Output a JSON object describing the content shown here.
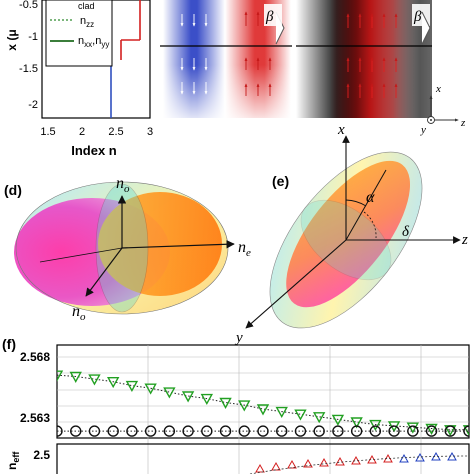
{
  "panel_a": {
    "y_axis_label": "x (μ",
    "x_axis_label": "Index n",
    "y_ticks": [
      "-0.5",
      "-1",
      "-1.5",
      "-2"
    ],
    "x_ticks": [
      "1.5",
      "2",
      "2.5",
      "3"
    ],
    "legend": {
      "clad": "clad",
      "nzz": "n",
      "nzz_sub": "zz",
      "nxx": "n",
      "nxx_sub": "xx",
      "sep": ",",
      "nyy": "n",
      "nyy_sub": "yy"
    },
    "colors": {
      "nzz": "#2e8b2e",
      "nxx_nyy": "#1f6b1f",
      "red": "#d42020",
      "blue": "#3050c0"
    }
  },
  "field_panels": {
    "beta_left": "β",
    "beta_right": "β",
    "axis_x": "x",
    "axis_y": "y",
    "axis_z": "z"
  },
  "panel_d": {
    "label": "(d)",
    "n_o_top": "n",
    "n_o_top_sub": "o",
    "n_e": "n",
    "n_e_sub": "e",
    "n_o_bottom": "n",
    "n_o_bottom_sub": "o"
  },
  "panel_e": {
    "label": "(e)",
    "axis_x": "x",
    "axis_z": "z",
    "axis_y": "y",
    "alpha": "α",
    "delta": "δ"
  },
  "panel_f": {
    "label": "(f)",
    "y_ticks_top": [
      "2.568",
      "2.563"
    ],
    "y_tick_bottom": "2.5",
    "y_axis_label": "n",
    "y_axis_label_sub": "eff",
    "colors": {
      "green": "#22a022",
      "black": "#111111",
      "red": "#d42020",
      "blue": "#2040c0"
    }
  },
  "chart_data": {
    "type": "scatter",
    "series": [
      {
        "marker": "triangle-down",
        "color": "#22a022",
        "x": [
          0,
          1,
          2,
          3,
          4,
          5,
          6,
          7,
          8,
          9,
          10,
          11,
          12,
          13,
          14,
          15,
          16,
          17,
          18,
          19,
          20,
          21,
          22
        ],
        "y": [
          2.5666,
          2.5665,
          2.5663,
          2.5661,
          2.5658,
          2.5656,
          2.5653,
          2.565,
          2.5648,
          2.5645,
          2.5643,
          2.564,
          2.5638,
          2.5636,
          2.5634,
          2.5632,
          2.563,
          2.5628,
          2.5627,
          2.5626,
          2.5625,
          2.5624,
          2.5624
        ]
      },
      {
        "marker": "circle",
        "color": "#111111",
        "x": [
          0,
          1,
          2,
          3,
          4,
          5,
          6,
          7,
          8,
          9,
          10,
          11,
          12,
          13,
          14,
          15,
          16,
          17,
          18,
          19,
          20,
          21,
          22
        ],
        "y": [
          2.5623,
          2.5623,
          2.5623,
          2.5623,
          2.5623,
          2.5623,
          2.5623,
          2.5623,
          2.5623,
          2.5623,
          2.5623,
          2.5623,
          2.5623,
          2.5623,
          2.5623,
          2.5623,
          2.5623,
          2.5623,
          2.5623,
          2.5623,
          2.5623,
          2.5623,
          2.5623
        ]
      }
    ],
    "ylim": [
      2.56,
      2.568
    ]
  }
}
